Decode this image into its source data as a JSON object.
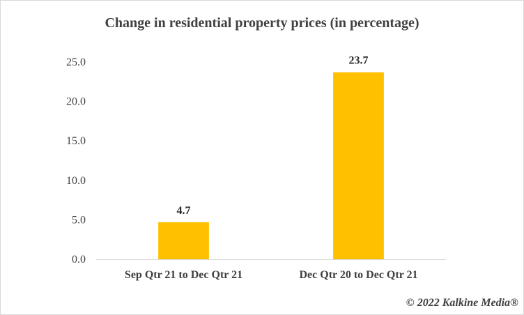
{
  "chart_data": {
    "type": "bar",
    "title": "Change in residential property prices (in percentage)",
    "categories": [
      "Sep Qtr 21 to Dec Qtr 21",
      "Dec Qtr 20 to Dec Qtr 21"
    ],
    "values": [
      4.7,
      23.7
    ],
    "data_labels": [
      "4.7",
      "23.7"
    ],
    "ylim": [
      0,
      25
    ],
    "yticks": [
      "0.0",
      "5.0",
      "10.0",
      "15.0",
      "20.0",
      "25.0"
    ],
    "xlabel": "",
    "ylabel": "",
    "grid": false,
    "bar_color": "#ffc000"
  },
  "credit": "© 2022 Kalkine Media®"
}
